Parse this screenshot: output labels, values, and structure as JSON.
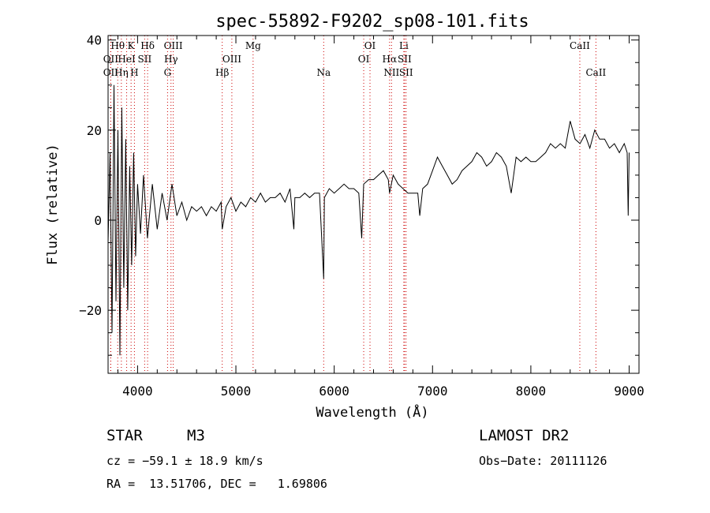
{
  "chart_data": {
    "type": "line",
    "title": "spec-55892-F9202_sp08-101.fits",
    "xlabel": "Wavelength (Å)",
    "ylabel": "Flux (relative)",
    "xlim": [
      3700,
      9100
    ],
    "ylim": [
      -34,
      41
    ],
    "xticks": [
      4000,
      5000,
      6000,
      7000,
      8000,
      9000
    ],
    "yticks": [
      -20,
      0,
      20,
      40
    ],
    "xtick_labels": [
      "4000",
      "5000",
      "6000",
      "7000",
      "8000",
      "9000"
    ],
    "ytick_labels": [
      "−20",
      "0",
      "20",
      "40"
    ],
    "x_minor_step": 200,
    "y_minor_step": 5,
    "grid": false,
    "line_color": "#000000",
    "marker_color": "#cc0000",
    "series": [
      {
        "x": [
          3700,
          3720,
          3740,
          3760,
          3780,
          3800,
          3820,
          3840,
          3860,
          3880,
          3900,
          3920,
          3940,
          3960,
          3980,
          4000,
          4030,
          4060,
          4100,
          4150,
          4200,
          4250,
          4300,
          4350,
          4400,
          4450,
          4500,
          4550,
          4600,
          4650,
          4700,
          4750,
          4800,
          4850,
          4861,
          4900,
          4950,
          5000,
          5050,
          5100,
          5150,
          5200,
          5250,
          5300,
          5350,
          5400,
          5450,
          5500,
          5550,
          5590,
          5600,
          5650,
          5700,
          5750,
          5800,
          5850,
          5893,
          5900,
          5950,
          6000,
          6050,
          6100,
          6150,
          6200,
          6250,
          6280,
          6300,
          6350,
          6400,
          6450,
          6500,
          6550,
          6563,
          6600,
          6650,
          6700,
          6750,
          6800,
          6850,
          6870,
          6900,
          6950,
          7000,
          7050,
          7100,
          7150,
          7200,
          7250,
          7300,
          7350,
          7400,
          7450,
          7500,
          7550,
          7600,
          7650,
          7700,
          7750,
          7800,
          7850,
          7900,
          7950,
          8000,
          8050,
          8100,
          8150,
          8200,
          8250,
          8300,
          8350,
          8400,
          8450,
          8500,
          8550,
          8600,
          8650,
          8700,
          8750,
          8800,
          8850,
          8900,
          8950,
          8980,
          8990,
          9000
        ],
        "y": [
          -5,
          15,
          -25,
          30,
          -18,
          20,
          -30,
          25,
          -15,
          18,
          -20,
          12,
          -10,
          15,
          -8,
          8,
          -3,
          10,
          -4,
          8,
          -2,
          6,
          0,
          8,
          1,
          4,
          0,
          3,
          2,
          3,
          1,
          3,
          2,
          4,
          -2,
          3,
          5,
          2,
          4,
          3,
          5,
          4,
          6,
          4,
          5,
          5,
          6,
          4,
          7,
          -2,
          5,
          5,
          6,
          5,
          6,
          6,
          -13,
          5,
          7,
          6,
          7,
          8,
          7,
          7,
          6,
          -4,
          8,
          9,
          9,
          10,
          11,
          9,
          6,
          10,
          8,
          7,
          6,
          6,
          6,
          1,
          7,
          8,
          11,
          14,
          12,
          10,
          8,
          9,
          11,
          12,
          13,
          15,
          14,
          12,
          13,
          15,
          14,
          12,
          6,
          14,
          13,
          14,
          13,
          13,
          14,
          15,
          17,
          16,
          17,
          16,
          22,
          18,
          17,
          19,
          16,
          20,
          18,
          18,
          16,
          17,
          15,
          17,
          15,
          1,
          15
        ]
      }
    ],
    "line_markers": [
      {
        "label": "Hθ",
        "x": 3798,
        "row": 0
      },
      {
        "label": "K",
        "x": 3934,
        "row": 0
      },
      {
        "label": "Hδ",
        "x": 4102,
        "row": 0
      },
      {
        "label": "OIII",
        "x": 4363,
        "row": 0
      },
      {
        "label": "Mg",
        "x": 5175,
        "row": 0
      },
      {
        "label": "OI",
        "x": 6364,
        "row": 0
      },
      {
        "label": "Li",
        "x": 6708,
        "row": 0
      },
      {
        "label": "CaII",
        "x": 8498,
        "row": 0
      },
      {
        "label": "OII",
        "x": 3727,
        "row": 1
      },
      {
        "label": "HeI",
        "x": 3889,
        "row": 1
      },
      {
        "label": "SII",
        "x": 4072,
        "row": 1
      },
      {
        "label": "Hγ",
        "x": 4340,
        "row": 1
      },
      {
        "label": "OIII",
        "x": 4959,
        "row": 1
      },
      {
        "label": "OI",
        "x": 6300,
        "row": 1
      },
      {
        "label": "Hα",
        "x": 6563,
        "row": 1
      },
      {
        "label": "SII",
        "x": 6716,
        "row": 1
      },
      {
        "label": "OII",
        "x": 3727,
        "row": 2
      },
      {
        "label": "Hη",
        "x": 3835,
        "row": 2
      },
      {
        "label": "H",
        "x": 3968,
        "row": 2
      },
      {
        "label": "G",
        "x": 4305,
        "row": 2
      },
      {
        "label": "Hβ",
        "x": 4861,
        "row": 2
      },
      {
        "label": "Na",
        "x": 5893,
        "row": 2
      },
      {
        "label": "NII",
        "x": 6583,
        "row": 2
      },
      {
        "label": "SII",
        "x": 6731,
        "row": 2
      },
      {
        "label": "CaII",
        "x": 8662,
        "row": 2
      }
    ]
  },
  "info": {
    "class_label": "STAR",
    "subclass": "M3",
    "survey": "LAMOST DR2",
    "cz": "cz = −59.1 ± 18.9 km/s",
    "obs_date": "Obs−Date: 20111126",
    "coords": "RA =  13.51706, DEC =   1.69806"
  }
}
